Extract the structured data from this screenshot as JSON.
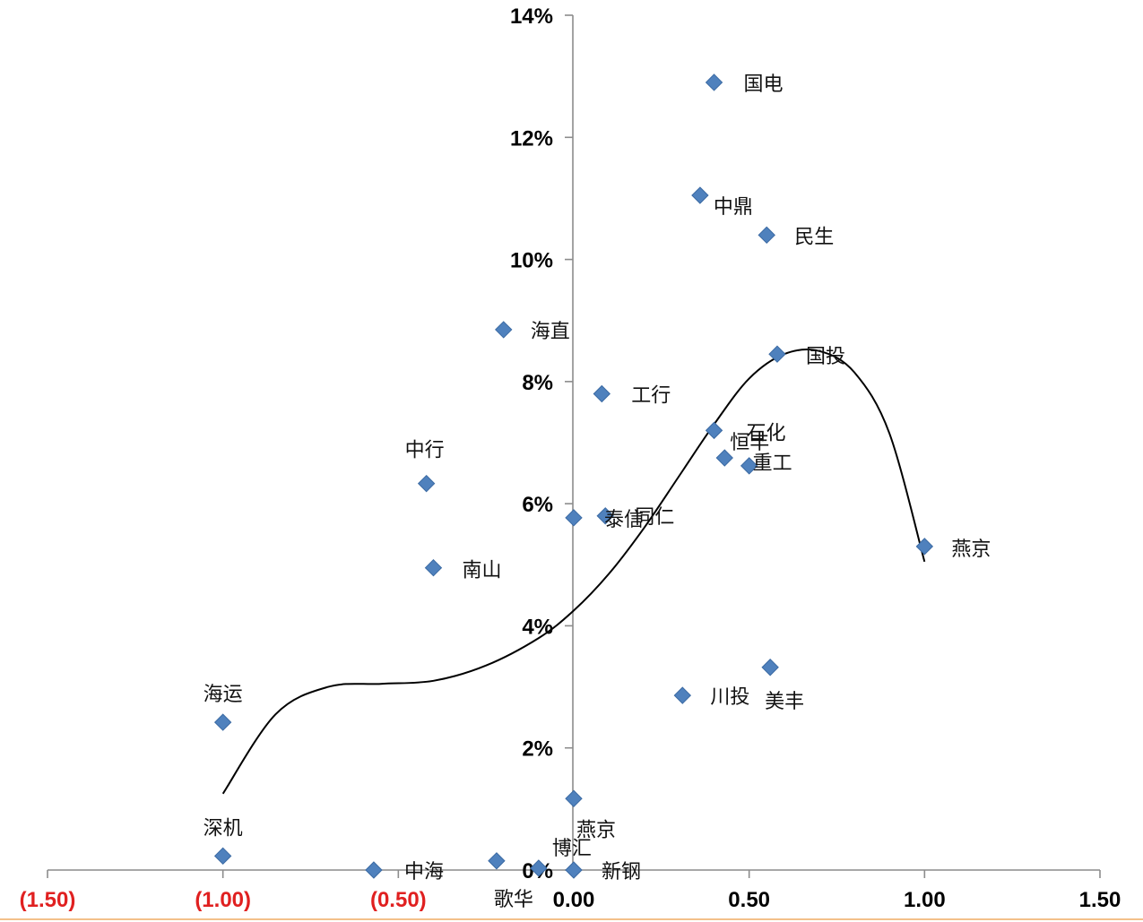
{
  "chart_data": {
    "type": "scatter",
    "title": "",
    "xlabel": "",
    "ylabel": "",
    "xlim": [
      -1.5,
      1.5
    ],
    "ylim": [
      0,
      14
    ],
    "x_ticks": [
      -1.5,
      -1.0,
      -0.5,
      0.0,
      0.5,
      1.0,
      1.5
    ],
    "x_tick_labels": [
      "(1.50)",
      "(1.00)",
      "(0.50)",
      "0.00",
      "0.50",
      "1.00",
      "1.50"
    ],
    "y_ticks": [
      0,
      2,
      4,
      6,
      8,
      10,
      12,
      14
    ],
    "y_tick_labels": [
      "0%",
      "2%",
      "4%",
      "6%",
      "8%",
      "10%",
      "12%",
      "14%"
    ],
    "colors": {
      "marker": "#4f81bd",
      "negative_tick_label": "#e02020",
      "positive_tick_label": "#000000",
      "axis": "#8c8c8c",
      "trendline": "#000000",
      "bottom_rule": "#f3c08a"
    },
    "points": [
      {
        "label": "国电",
        "x": 0.4,
        "y": 12.9
      },
      {
        "label": "中鼎",
        "x": 0.36,
        "y": 11.05
      },
      {
        "label": "民生",
        "x": 0.55,
        "y": 10.4
      },
      {
        "label": "海直",
        "x": -0.2,
        "y": 8.85
      },
      {
        "label": "国投",
        "x": 0.58,
        "y": 8.45
      },
      {
        "label": "工行",
        "x": 0.08,
        "y": 7.8
      },
      {
        "label": "石化",
        "x": 0.4,
        "y": 7.2
      },
      {
        "label": "恒丰",
        "x": 0.43,
        "y": 6.75
      },
      {
        "label": "重工",
        "x": 0.5,
        "y": 6.62
      },
      {
        "label": "中行",
        "x": -0.42,
        "y": 6.33
      },
      {
        "label": "泰信",
        "x": 0.0,
        "y": 5.77
      },
      {
        "label": "同仁",
        "x": 0.09,
        "y": 5.8
      },
      {
        "label": "燕京",
        "x": 1.0,
        "y": 5.3
      },
      {
        "label": "南山",
        "x": -0.4,
        "y": 4.95
      },
      {
        "label": "美丰",
        "x": 0.56,
        "y": 3.32
      },
      {
        "label": "川投",
        "x": 0.31,
        "y": 2.86
      },
      {
        "label": "海运",
        "x": -1.0,
        "y": 2.42
      },
      {
        "label": "燕京",
        "x": 0.0,
        "y": 1.17
      },
      {
        "label": "博汇",
        "x": -0.1,
        "y": 0.03
      },
      {
        "label": "深机",
        "x": -1.0,
        "y": 0.23
      },
      {
        "label": "中海",
        "x": -0.57,
        "y": 0.0
      },
      {
        "label": "歌华",
        "x": -0.22,
        "y": 0.15
      },
      {
        "label": "新钢",
        "x": 0.0,
        "y": 0.0
      }
    ],
    "trendline": {
      "type": "polynomial",
      "x_range": [
        -1.0,
        1.0
      ],
      "samples": [
        {
          "x": -1.0,
          "y": 1.25
        },
        {
          "x": -0.85,
          "y": 2.55
        },
        {
          "x": -0.7,
          "y": 3.0
        },
        {
          "x": -0.55,
          "y": 3.05
        },
        {
          "x": -0.4,
          "y": 3.1
        },
        {
          "x": -0.25,
          "y": 3.35
        },
        {
          "x": -0.1,
          "y": 3.8
        },
        {
          "x": 0.0,
          "y": 4.25
        },
        {
          "x": 0.1,
          "y": 4.85
        },
        {
          "x": 0.2,
          "y": 5.6
        },
        {
          "x": 0.3,
          "y": 6.45
        },
        {
          "x": 0.4,
          "y": 7.3
        },
        {
          "x": 0.5,
          "y": 8.05
        },
        {
          "x": 0.6,
          "y": 8.45
        },
        {
          "x": 0.7,
          "y": 8.5
        },
        {
          "x": 0.8,
          "y": 8.15
        },
        {
          "x": 0.9,
          "y": 7.15
        },
        {
          "x": 1.0,
          "y": 5.05
        }
      ]
    }
  }
}
